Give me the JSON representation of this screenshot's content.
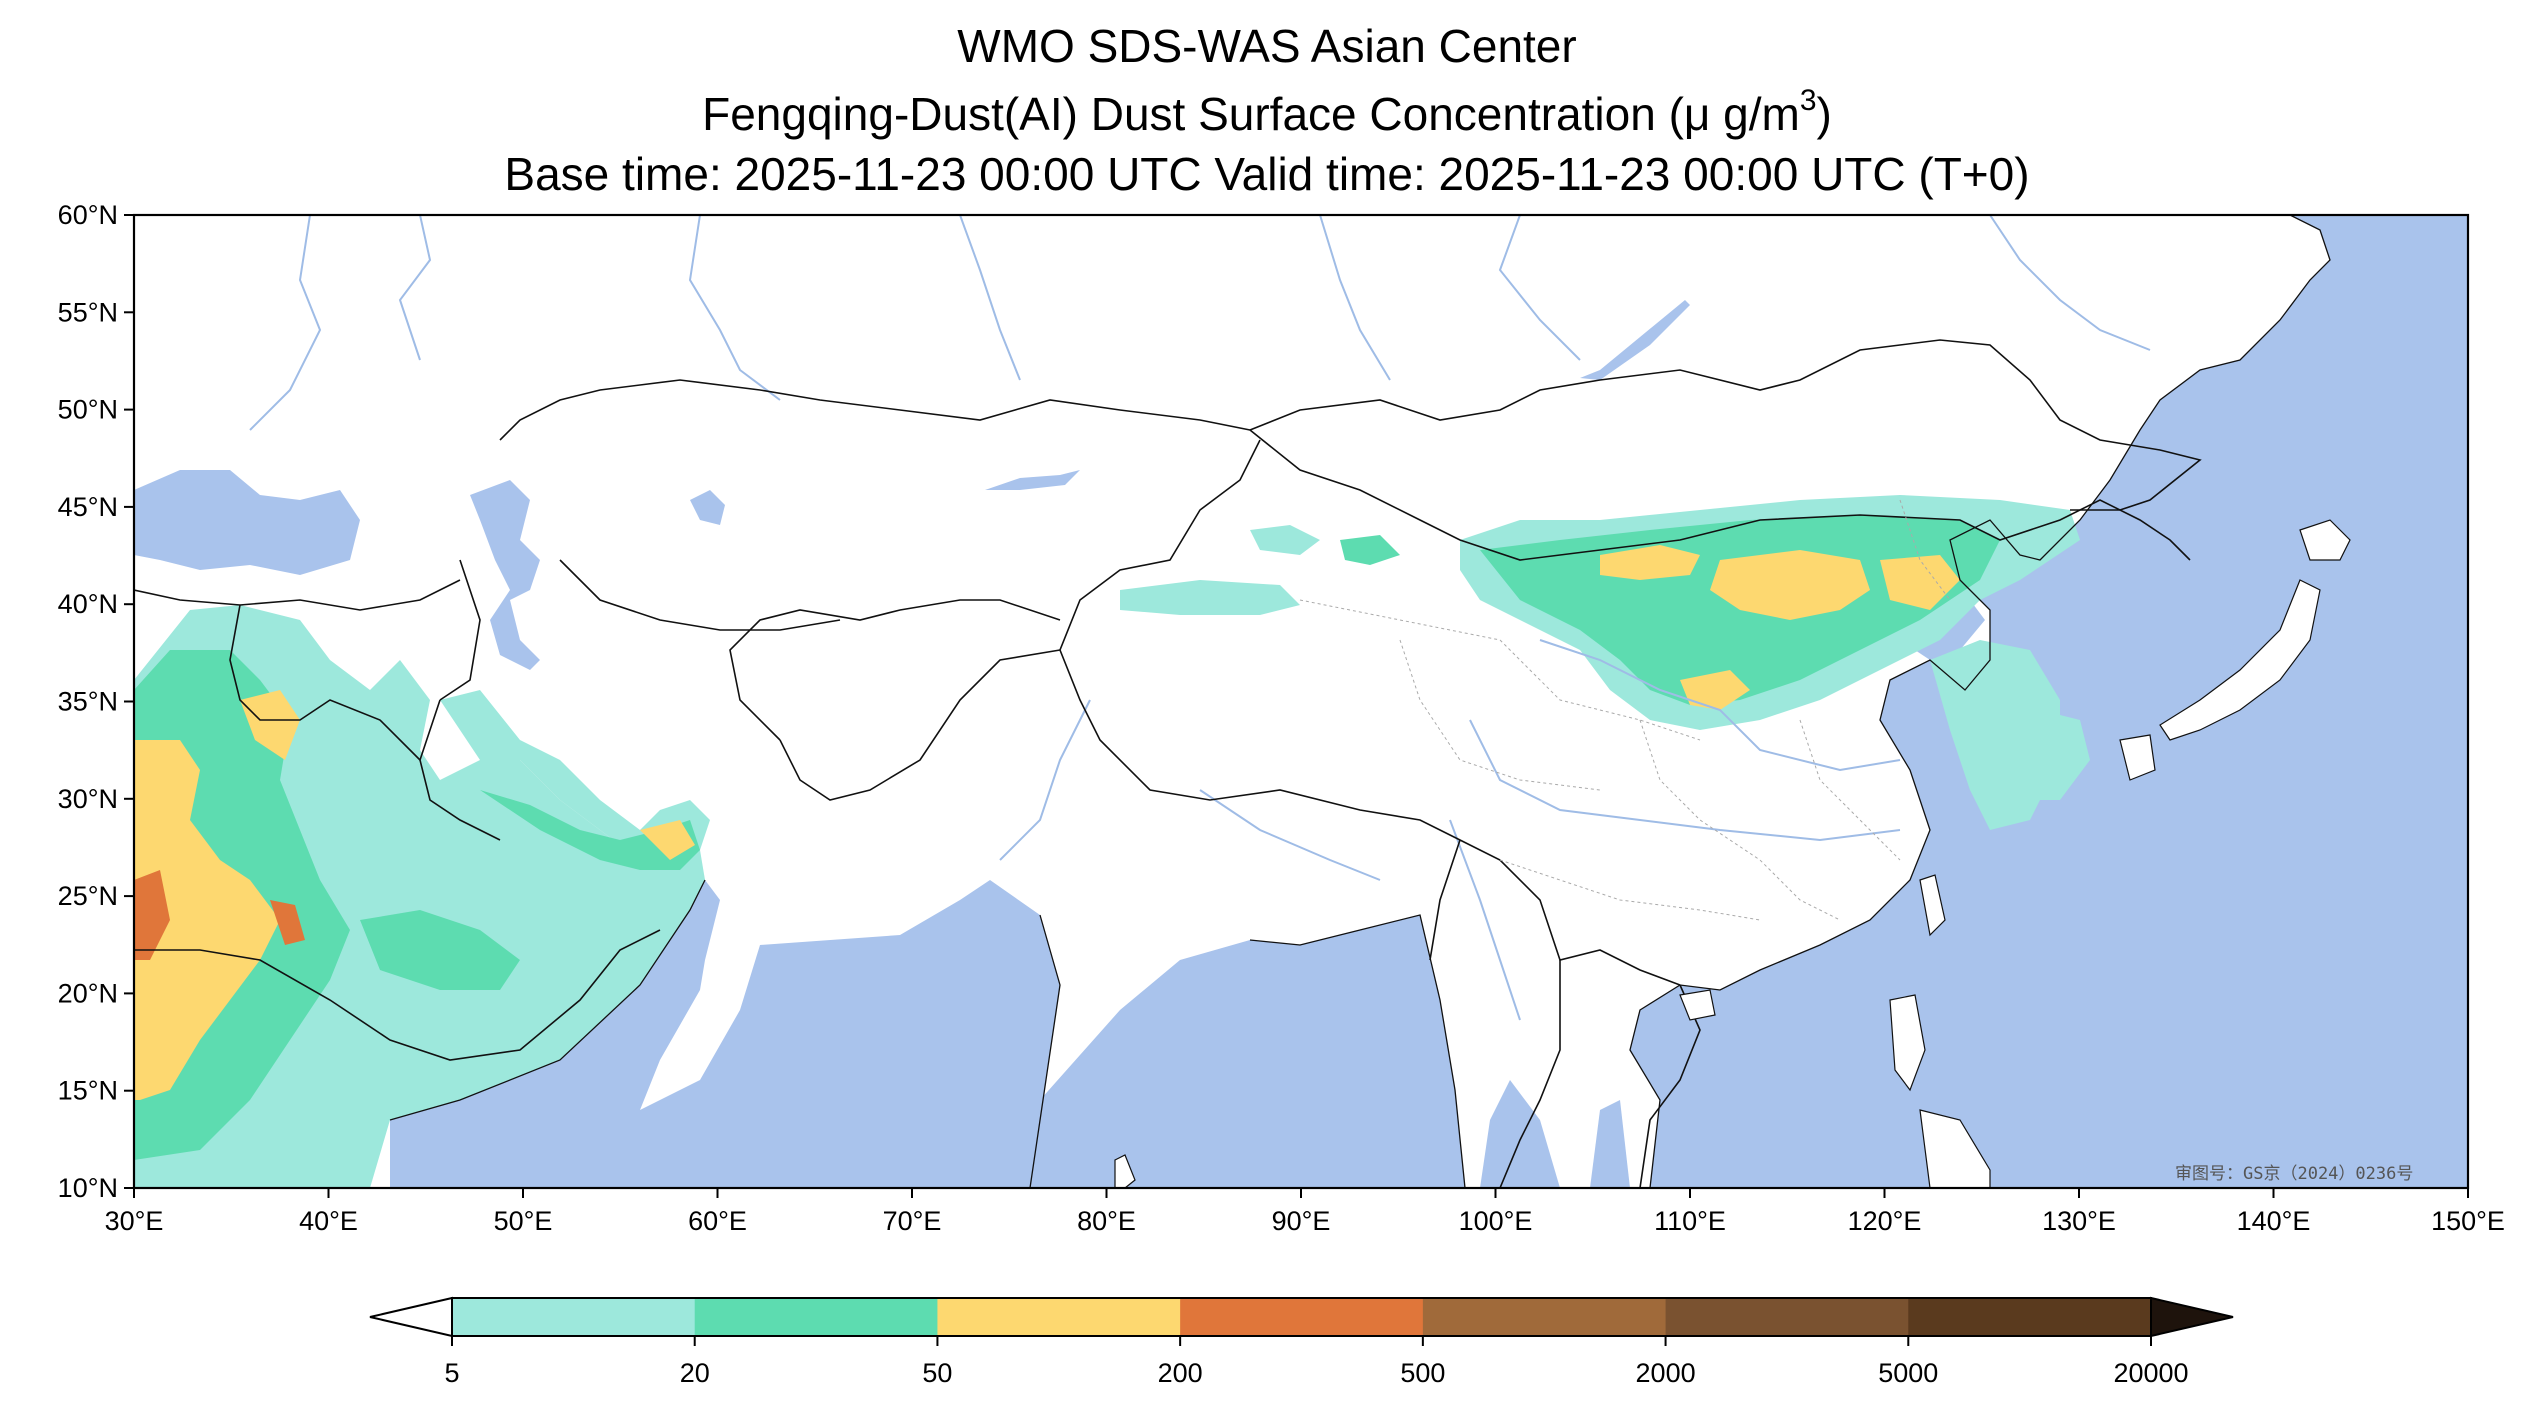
{
  "title": {
    "line1": "WMO SDS-WAS Asian Center",
    "line2_main": "Fengqing-Dust(AI) Dust Surface Concentration (μ g/m",
    "line2_sup": "3",
    "line2_end": ")",
    "line3": "Base time: 2025-11-23 00:00 UTC Valid time: 2025-11-23 00:00 UTC (T+0)"
  },
  "map": {
    "lon_range": [
      30,
      150
    ],
    "lat_range": [
      10,
      60
    ],
    "lon_ticks": [
      "30°E",
      "40°E",
      "50°E",
      "60°E",
      "70°E",
      "80°E",
      "90°E",
      "100°E",
      "110°E",
      "120°E",
      "130°E",
      "140°E",
      "150°E"
    ],
    "lat_ticks": [
      "10°N",
      "15°N",
      "20°N",
      "25°N",
      "30°N",
      "35°N",
      "40°N",
      "45°N",
      "50°N",
      "55°N",
      "60°N"
    ],
    "ocean_color": "#a9c3ec",
    "land_color": "#ffffff"
  },
  "colorbar": {
    "ticks": [
      "5",
      "20",
      "50",
      "200",
      "500",
      "2000",
      "5000",
      "20000"
    ],
    "colors": [
      "#9de8dc",
      "#5ddcb0",
      "#fdd870",
      "#e0763a",
      "#a06a3a",
      "#7a5230",
      "#5a3a1e",
      "#3a2616",
      "#1e130c"
    ],
    "extend": "both"
  },
  "watermark": "审图号：GS京（2024）0236号"
}
